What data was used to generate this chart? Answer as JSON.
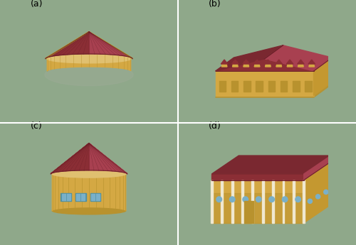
{
  "bg_color": "#8fa88a",
  "label_color": "#000000",
  "label_fontsize": 9,
  "labels": [
    "(a)",
    "(b)",
    "(c)",
    "(d)"
  ],
  "roof_color": "#8b2e35",
  "roof_color_light": "#a84050",
  "roof_color_top": "#7a2830",
  "wall_color": "#d4a843",
  "wall_color_dark": "#b8922e",
  "wall_color_light": "#e0c070",
  "wall_color_side": "#c49830",
  "shadow_color": "#a09888",
  "line_color": "#6a2028",
  "window_color": "#7ab0c8",
  "window_frame": "#5090a0",
  "white_color": "#e8dfc0",
  "cream_color": "#f0e8d0",
  "fig_width": 5.0,
  "fig_height": 3.45,
  "dpi": 100
}
